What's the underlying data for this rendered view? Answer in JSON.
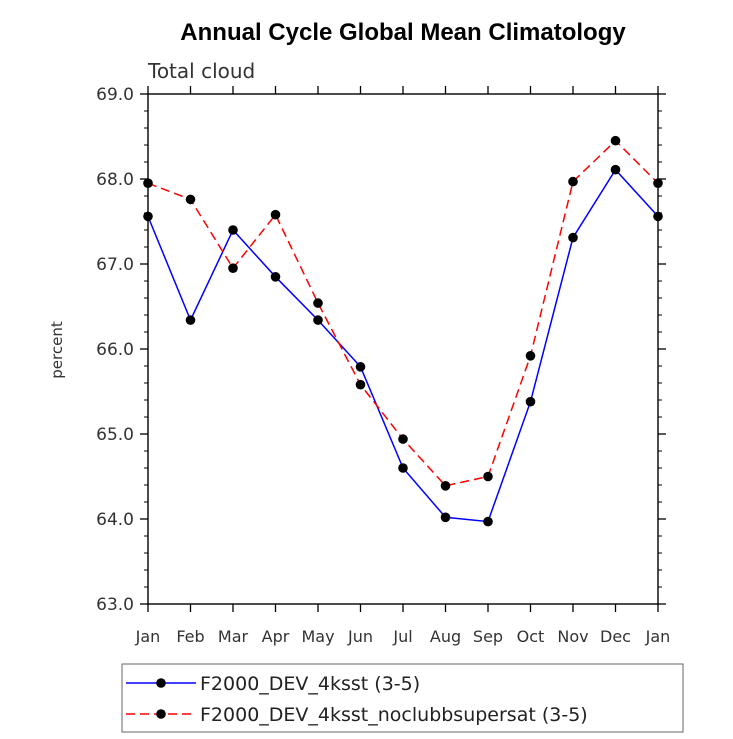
{
  "chart_data": {
    "type": "line",
    "title": "Annual Cycle Global Mean Climatology",
    "subtitle": "Total cloud",
    "xlabel": "",
    "ylabel": "percent",
    "categories": [
      "Jan",
      "Feb",
      "Mar",
      "Apr",
      "May",
      "Jun",
      "Jul",
      "Aug",
      "Sep",
      "Oct",
      "Nov",
      "Dec",
      "Jan"
    ],
    "ylim": [
      63.0,
      69.0
    ],
    "yticks": [
      "63.0",
      "64.0",
      "65.0",
      "66.0",
      "67.0",
      "68.0",
      "69.0"
    ],
    "grid": false,
    "legend_position": "bottom",
    "series": [
      {
        "name": "F2000_DEV_4ksst (3-5)",
        "color": "#0000ff",
        "dash": "solid",
        "marker": "filled-circle",
        "values": [
          67.56,
          66.34,
          67.4,
          66.85,
          66.34,
          65.79,
          64.6,
          64.02,
          63.97,
          65.38,
          67.31,
          68.11,
          67.56
        ]
      },
      {
        "name": "F2000_DEV_4ksst_noclubbsupersat (3-5)",
        "color": "#ff0000",
        "dash": "dashed",
        "marker": "filled-circle",
        "values": [
          67.95,
          67.76,
          66.95,
          67.58,
          66.54,
          65.58,
          64.94,
          64.39,
          64.5,
          65.92,
          67.97,
          68.45,
          67.95
        ]
      }
    ]
  }
}
